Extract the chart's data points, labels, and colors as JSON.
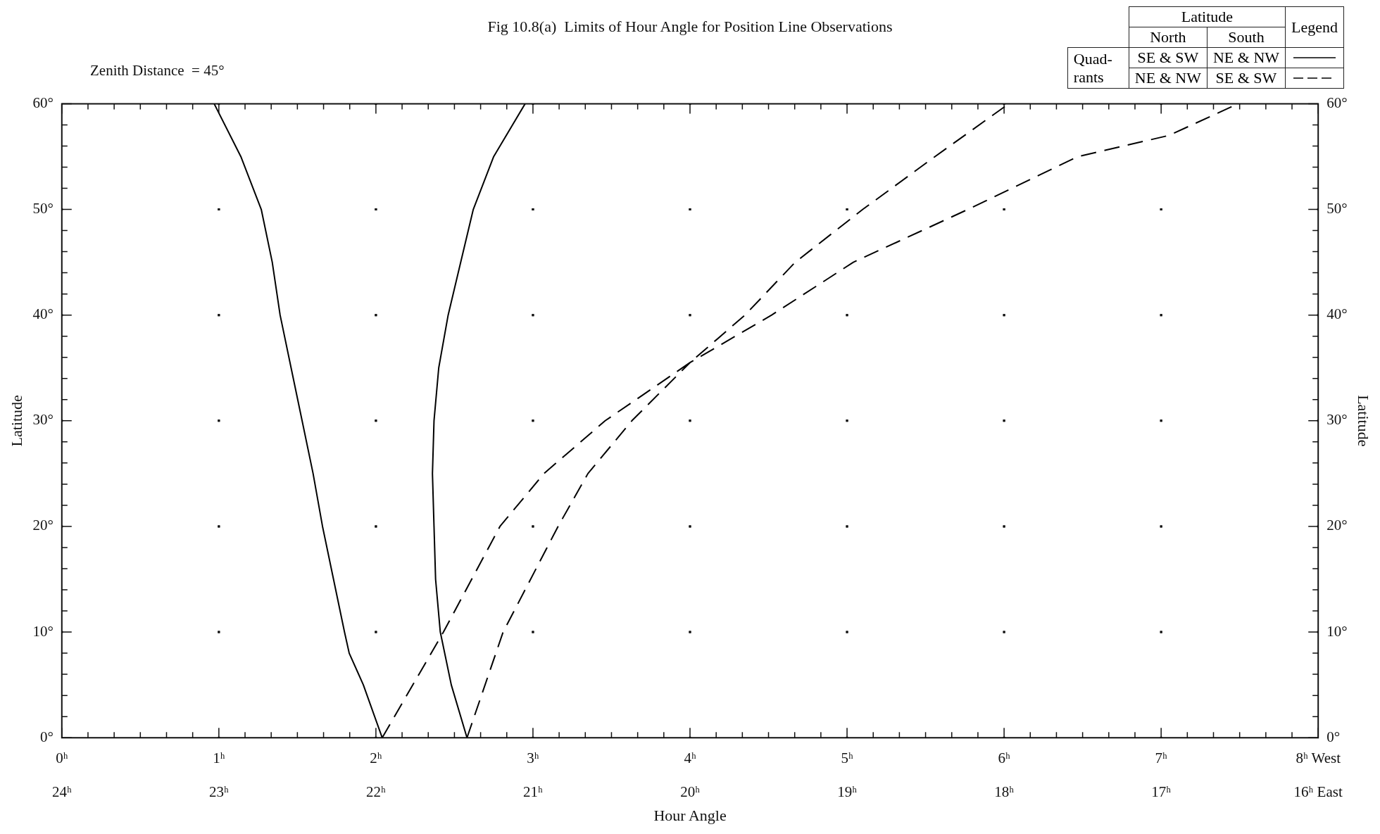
{
  "chart_data": {
    "type": "line",
    "title": "Fig 10.8(a)  Limits of Hour Angle for Position Line Observations",
    "xlabel": "Hour Angle",
    "ylabel": "Latitude",
    "y2label": "Latitude",
    "legend_title": "Legend",
    "grid": true,
    "marker": "none",
    "annotations": [
      "Zenith Distance  = 45°",
      "Latitude",
      "North",
      "South",
      "Quad-rants",
      "SE & SW",
      "NE & NW",
      "NE & NW",
      "SE & SW"
    ],
    "xlim": [
      0,
      8
    ],
    "ylim": [
      0,
      60
    ],
    "y2lim": [
      0,
      60
    ],
    "x2lim": [
      24,
      16
    ],
    "x2ticks": [
      {
        "value": 24,
        "label": "24ʰ"
      },
      {
        "value": 23,
        "label": "23ʰ"
      },
      {
        "value": 22,
        "label": "22ʰ"
      },
      {
        "value": 21,
        "label": "21ʰ"
      },
      {
        "value": 20,
        "label": "20ʰ"
      },
      {
        "value": 19,
        "label": "19ʰ"
      },
      {
        "value": 18,
        "label": "18ʰ"
      },
      {
        "value": 17,
        "label": "17ʰ"
      },
      {
        "value": 16,
        "label": "16ʰ East"
      }
    ],
    "xticks": [
      {
        "value": 0,
        "label": "0ʰ"
      },
      {
        "value": 0.1667,
        "label": null
      },
      {
        "value": 0.3333,
        "label": null
      },
      {
        "value": 0.5,
        "label": null
      },
      {
        "value": 0.6667,
        "label": null
      },
      {
        "value": 0.8333,
        "label": null
      },
      {
        "value": 1,
        "label": "1ʰ"
      },
      {
        "value": 1.1667,
        "label": null
      },
      {
        "value": 1.3333,
        "label": null
      },
      {
        "value": 1.5,
        "label": null
      },
      {
        "value": 1.6667,
        "label": null
      },
      {
        "value": 1.8333,
        "label": null
      },
      {
        "value": 2,
        "label": "2ʰ"
      },
      {
        "value": 2.1667,
        "label": null
      },
      {
        "value": 2.3333,
        "label": null
      },
      {
        "value": 2.5,
        "label": null
      },
      {
        "value": 2.6667,
        "label": null
      },
      {
        "value": 2.8333,
        "label": null
      },
      {
        "value": 3,
        "label": "3ʰ"
      },
      {
        "value": 3.1667,
        "label": null
      },
      {
        "value": 3.3333,
        "label": null
      },
      {
        "value": 3.5,
        "label": null
      },
      {
        "value": 3.6667,
        "label": null
      },
      {
        "value": 3.8333,
        "label": null
      },
      {
        "value": 4,
        "label": "4ʰ"
      },
      {
        "value": 4.1667,
        "label": null
      },
      {
        "value": 4.3333,
        "label": null
      },
      {
        "value": 4.5,
        "label": null
      },
      {
        "value": 4.6667,
        "label": null
      },
      {
        "value": 4.8333,
        "label": null
      },
      {
        "value": 5,
        "label": "5ʰ"
      },
      {
        "value": 5.1667,
        "label": null
      },
      {
        "value": 5.3333,
        "label": null
      },
      {
        "value": 5.5,
        "label": null
      },
      {
        "value": 5.6667,
        "label": null
      },
      {
        "value": 5.8333,
        "label": null
      },
      {
        "value": 6,
        "label": "6ʰ"
      },
      {
        "value": 6.1667,
        "label": null
      },
      {
        "value": 6.3333,
        "label": null
      },
      {
        "value": 6.5,
        "label": null
      },
      {
        "value": 6.6667,
        "label": null
      },
      {
        "value": 6.8333,
        "label": null
      },
      {
        "value": 7,
        "label": "7ʰ"
      },
      {
        "value": 7.1667,
        "label": null
      },
      {
        "value": 7.3333,
        "label": null
      },
      {
        "value": 7.5,
        "label": null
      },
      {
        "value": 7.6667,
        "label": null
      },
      {
        "value": 7.8333,
        "label": null
      },
      {
        "value": 8,
        "label": "8ʰ West"
      }
    ],
    "yticks": [
      {
        "value": 0,
        "label": "0°"
      },
      {
        "value": 2,
        "label": null
      },
      {
        "value": 4,
        "label": null
      },
      {
        "value": 6,
        "label": null
      },
      {
        "value": 8,
        "label": null
      },
      {
        "value": 10,
        "label": "10°"
      },
      {
        "value": 12,
        "label": null
      },
      {
        "value": 14,
        "label": null
      },
      {
        "value": 16,
        "label": null
      },
      {
        "value": 18,
        "label": null
      },
      {
        "value": 20,
        "label": "20°"
      },
      {
        "value": 22,
        "label": null
      },
      {
        "value": 24,
        "label": null
      },
      {
        "value": 26,
        "label": null
      },
      {
        "value": 28,
        "label": null
      },
      {
        "value": 30,
        "label": "30°"
      },
      {
        "value": 32,
        "label": null
      },
      {
        "value": 34,
        "label": null
      },
      {
        "value": 36,
        "label": null
      },
      {
        "value": 38,
        "label": null
      },
      {
        "value": 40,
        "label": "40°"
      },
      {
        "value": 42,
        "label": null
      },
      {
        "value": 44,
        "label": null
      },
      {
        "value": 46,
        "label": null
      },
      {
        "value": 48,
        "label": null
      },
      {
        "value": 50,
        "label": "50°"
      },
      {
        "value": 52,
        "label": null
      },
      {
        "value": 54,
        "label": null
      },
      {
        "value": 56,
        "label": null
      },
      {
        "value": 58,
        "label": null
      },
      {
        "value": 60,
        "label": "60°"
      }
    ],
    "y2ticks": [
      {
        "value": 0,
        "label": "0°"
      },
      {
        "value": 2,
        "label": null
      },
      {
        "value": 4,
        "label": null
      },
      {
        "value": 6,
        "label": null
      },
      {
        "value": 8,
        "label": null
      },
      {
        "value": 10,
        "label": "10°"
      },
      {
        "value": 12,
        "label": null
      },
      {
        "value": 14,
        "label": null
      },
      {
        "value": 16,
        "label": null
      },
      {
        "value": 18,
        "label": null
      },
      {
        "value": 20,
        "label": "20°"
      },
      {
        "value": 22,
        "label": null
      },
      {
        "value": 24,
        "label": null
      },
      {
        "value": 26,
        "label": null
      },
      {
        "value": 28,
        "label": null
      },
      {
        "value": 30,
        "label": "30°"
      },
      {
        "value": 32,
        "label": null
      },
      {
        "value": 34,
        "label": null
      },
      {
        "value": 36,
        "label": null
      },
      {
        "value": 38,
        "label": null
      },
      {
        "value": 40,
        "label": "40°"
      },
      {
        "value": 42,
        "label": null
      },
      {
        "value": 44,
        "label": null
      },
      {
        "value": 46,
        "label": null
      },
      {
        "value": 48,
        "label": null
      },
      {
        "value": 50,
        "label": "50°"
      },
      {
        "value": 52,
        "label": null
      },
      {
        "value": 54,
        "label": null
      },
      {
        "value": 56,
        "label": null
      },
      {
        "value": 58,
        "label": null
      },
      {
        "value": 60,
        "label": "60°"
      }
    ],
    "series": [
      {
        "color": "#000000",
        "line_style": "solid",
        "x": [
          0.97,
          1.14,
          1.27,
          1.34,
          1.39,
          1.46,
          1.53,
          1.6,
          1.66,
          1.73,
          1.8,
          1.83,
          1.92,
          2.04,
          null,
          2.58,
          2.48,
          2.41,
          2.38,
          2.37,
          2.36,
          2.37,
          2.4,
          2.46,
          2.54,
          2.62,
          2.75,
          2.95
        ],
        "values": [
          60,
          55,
          50,
          45,
          40,
          35,
          30,
          25,
          20,
          15,
          10,
          8,
          5,
          0,
          null,
          0,
          5,
          10,
          15,
          20,
          25,
          30,
          35,
          40,
          45,
          50,
          55,
          60
        ]
      },
      {
        "color": "#000000",
        "line_style": "dashed",
        "x": [
          2.04,
          2.43,
          2.79,
          3.07,
          3.46,
          4.0,
          4.35,
          4.67,
          5.1,
          5.56,
          6.03,
          null,
          2.58,
          2.81,
          3.16,
          3.35,
          3.63,
          4.0,
          4.52,
          5.04,
          5.77,
          6.47,
          7.05,
          7.49
        ],
        "values": [
          0,
          10,
          20,
          25,
          30,
          35.5,
          40,
          45,
          50,
          55,
          60,
          null,
          0,
          10,
          20,
          25,
          30,
          35.5,
          40,
          45,
          50,
          55,
          57,
          60
        ]
      }
    ]
  }
}
